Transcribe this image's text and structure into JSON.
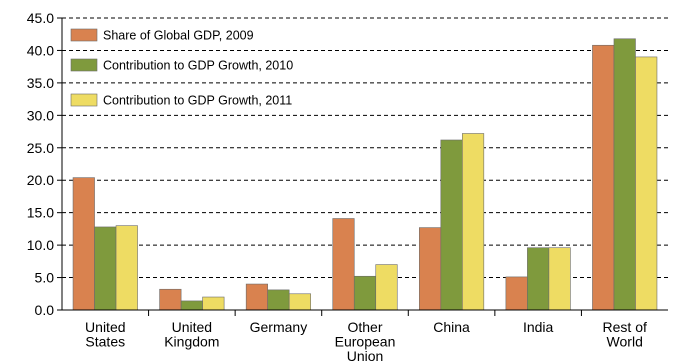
{
  "chart_data": {
    "type": "bar",
    "title": "",
    "xlabel": "",
    "ylabel": "",
    "ylim": [
      0,
      45
    ],
    "y_ticks": [
      "0.0",
      "5.0",
      "10.0",
      "15.0",
      "20.0",
      "25.0",
      "30.0",
      "35.0",
      "40.0",
      "45.0"
    ],
    "grid": "horizontal dashed",
    "legend_position": "top-left",
    "categories": [
      [
        "United",
        "States"
      ],
      [
        "United",
        "Kingdom"
      ],
      [
        "Germany"
      ],
      [
        "Other",
        "European",
        "Union"
      ],
      [
        "China"
      ],
      [
        "India"
      ],
      [
        "Rest of",
        "World"
      ]
    ],
    "series": [
      {
        "name": "Share of Global GDP, 2009",
        "color": "#D9824F",
        "values": [
          20.4,
          3.2,
          4.0,
          14.1,
          12.7,
          5.1,
          40.8
        ]
      },
      {
        "name": "Contribution to GDP Growth, 2010",
        "color": "#7F9A3D",
        "values": [
          12.8,
          1.4,
          3.1,
          5.2,
          26.2,
          9.6,
          41.8
        ]
      },
      {
        "name": "Contribution to GDP Growth, 2011",
        "color": "#EEDC63",
        "values": [
          13.0,
          2.0,
          2.5,
          7.0,
          27.2,
          9.6,
          39.0
        ]
      }
    ]
  }
}
